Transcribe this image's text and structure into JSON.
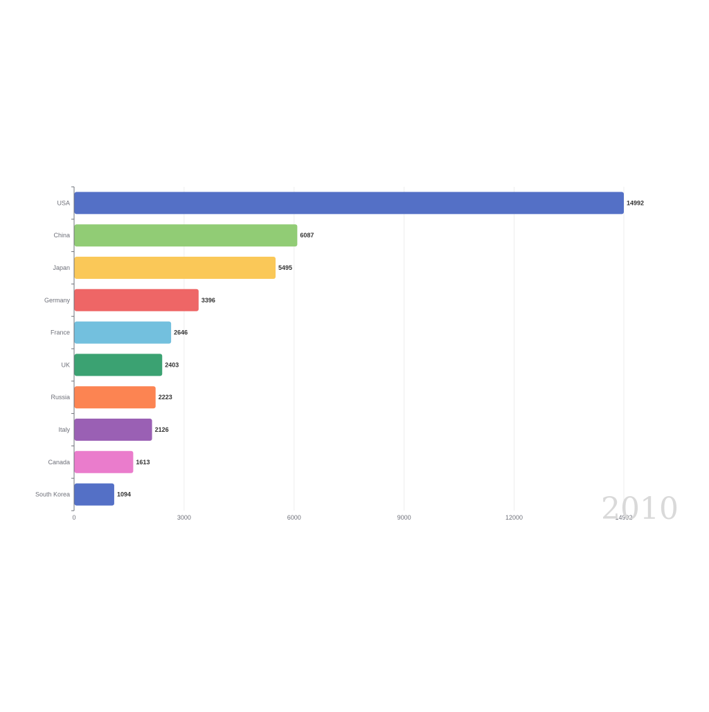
{
  "chart_data": {
    "type": "bar",
    "orientation": "horizontal",
    "categories": [
      "USA",
      "China",
      "Japan",
      "Germany",
      "France",
      "UK",
      "Russia",
      "Italy",
      "Canada",
      "South Korea"
    ],
    "values": [
      14992,
      6087,
      5495,
      3396,
      2646,
      2403,
      2223,
      2126,
      1613,
      1094
    ],
    "value_labels": [
      "14992",
      "6087",
      "5495",
      "3396",
      "2646",
      "2403",
      "2223",
      "2126",
      "1613",
      "1094"
    ],
    "colors": [
      "#5470c6",
      "#91cc75",
      "#fac858",
      "#ee6666",
      "#73c0de",
      "#3ba272",
      "#fc8452",
      "#9a60b4",
      "#ea7ccc",
      "#5470c6"
    ],
    "x_ticks": [
      0,
      3000,
      6000,
      9000,
      12000,
      14992
    ],
    "x_tick_labels": [
      "0",
      "3000",
      "6000",
      "9000",
      "12000",
      "14992"
    ],
    "xlim": [
      0,
      14992
    ],
    "grid": true,
    "year": "2010"
  }
}
